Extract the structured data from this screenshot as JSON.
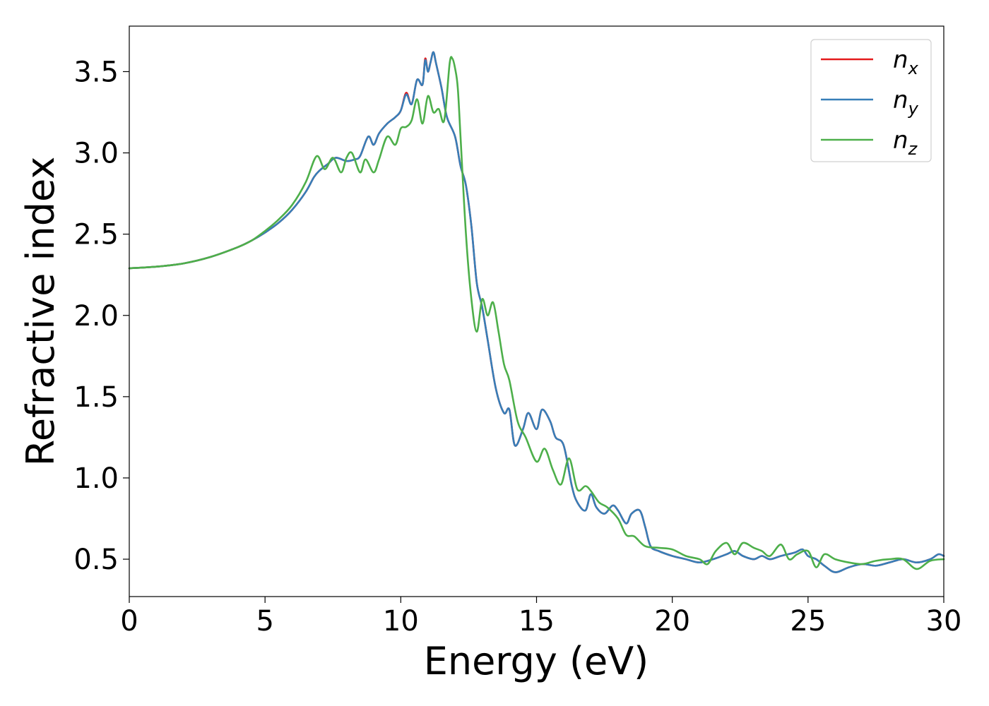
{
  "chart_data": {
    "type": "line",
    "title": "",
    "xlabel": "Energy (eV)",
    "ylabel": "Refractive index",
    "xlim": [
      0,
      30
    ],
    "ylim": [
      0.27,
      3.78
    ],
    "xticks": [
      0,
      5,
      10,
      15,
      20,
      25,
      30
    ],
    "yticks": [
      0.5,
      1.0,
      1.5,
      2.0,
      2.5,
      3.0,
      3.5
    ],
    "xtick_labels": [
      "0",
      "5",
      "10",
      "15",
      "20",
      "25",
      "30"
    ],
    "ytick_labels": [
      "0.5",
      "1.0",
      "1.5",
      "2.0",
      "2.5",
      "3.0",
      "3.5"
    ],
    "grid": false,
    "legend_position": "top-right",
    "series": [
      {
        "name": "n_x",
        "label_base": "n",
        "label_sub": "x",
        "color": "#e41a1c",
        "x": [
          0,
          1,
          2,
          3,
          4,
          4.5,
          5,
          5.5,
          6,
          6.5,
          6.8,
          7,
          7.3,
          7.6,
          8,
          8.3,
          8.5,
          8.8,
          9,
          9.2,
          9.5,
          9.8,
          10,
          10.2,
          10.4,
          10.6,
          10.8,
          10.9,
          11,
          11.1,
          11.2,
          11.3,
          11.5,
          11.7,
          12,
          12.2,
          12.4,
          12.6,
          12.8,
          13,
          13.2,
          13.5,
          13.8,
          14,
          14.2,
          14.5,
          14.7,
          15,
          15.2,
          15.5,
          15.7,
          16,
          16.3,
          16.5,
          16.8,
          17,
          17.2,
          17.5,
          17.8,
          18,
          18.3,
          18.5,
          18.8,
          19,
          19.2,
          19.5,
          20,
          20.5,
          21,
          21.5,
          22,
          22.3,
          22.6,
          23,
          23.3,
          23.6,
          24,
          24.5,
          24.8,
          25,
          25.3,
          25.6,
          26,
          26.5,
          27,
          27.5,
          28,
          28.5,
          29,
          29.5,
          29.8,
          30
        ],
        "y": [
          2.29,
          2.3,
          2.32,
          2.36,
          2.42,
          2.46,
          2.51,
          2.57,
          2.65,
          2.76,
          2.85,
          2.89,
          2.93,
          2.97,
          2.95,
          2.96,
          2.98,
          3.1,
          3.05,
          3.12,
          3.18,
          3.22,
          3.26,
          3.37,
          3.3,
          3.45,
          3.42,
          3.58,
          3.5,
          3.56,
          3.62,
          3.55,
          3.4,
          3.22,
          3.1,
          2.92,
          2.8,
          2.55,
          2.2,
          2.05,
          1.85,
          1.55,
          1.4,
          1.42,
          1.2,
          1.3,
          1.4,
          1.3,
          1.42,
          1.35,
          1.25,
          1.2,
          0.95,
          0.85,
          0.8,
          0.9,
          0.82,
          0.78,
          0.83,
          0.8,
          0.72,
          0.78,
          0.8,
          0.7,
          0.58,
          0.55,
          0.52,
          0.5,
          0.48,
          0.5,
          0.53,
          0.55,
          0.52,
          0.5,
          0.52,
          0.5,
          0.52,
          0.54,
          0.56,
          0.52,
          0.5,
          0.46,
          0.42,
          0.45,
          0.47,
          0.46,
          0.48,
          0.5,
          0.48,
          0.5,
          0.53,
          0.52
        ]
      },
      {
        "name": "n_y",
        "label_base": "n",
        "label_sub": "y",
        "color": "#377eb8",
        "x": [
          0,
          1,
          2,
          3,
          4,
          4.5,
          5,
          5.5,
          6,
          6.5,
          6.8,
          7,
          7.3,
          7.6,
          8,
          8.3,
          8.5,
          8.8,
          9,
          9.2,
          9.5,
          9.8,
          10,
          10.2,
          10.4,
          10.6,
          10.8,
          10.9,
          11,
          11.1,
          11.2,
          11.3,
          11.5,
          11.7,
          12,
          12.2,
          12.4,
          12.6,
          12.8,
          13,
          13.2,
          13.5,
          13.8,
          14,
          14.2,
          14.5,
          14.7,
          15,
          15.2,
          15.5,
          15.7,
          16,
          16.3,
          16.5,
          16.8,
          17,
          17.2,
          17.5,
          17.8,
          18,
          18.3,
          18.5,
          18.8,
          19,
          19.2,
          19.5,
          20,
          20.5,
          21,
          21.5,
          22,
          22.3,
          22.6,
          23,
          23.3,
          23.6,
          24,
          24.5,
          24.8,
          25,
          25.3,
          25.6,
          26,
          26.5,
          27,
          27.5,
          28,
          28.5,
          29,
          29.5,
          29.8,
          30
        ],
        "y": [
          2.29,
          2.3,
          2.32,
          2.36,
          2.42,
          2.46,
          2.51,
          2.57,
          2.65,
          2.76,
          2.85,
          2.89,
          2.93,
          2.97,
          2.95,
          2.96,
          2.98,
          3.1,
          3.05,
          3.12,
          3.18,
          3.22,
          3.26,
          3.36,
          3.3,
          3.45,
          3.42,
          3.57,
          3.5,
          3.56,
          3.62,
          3.55,
          3.4,
          3.22,
          3.1,
          2.92,
          2.8,
          2.55,
          2.2,
          2.05,
          1.85,
          1.55,
          1.4,
          1.42,
          1.2,
          1.3,
          1.4,
          1.3,
          1.42,
          1.35,
          1.25,
          1.2,
          0.95,
          0.85,
          0.8,
          0.9,
          0.82,
          0.78,
          0.83,
          0.8,
          0.72,
          0.78,
          0.8,
          0.7,
          0.58,
          0.55,
          0.52,
          0.5,
          0.48,
          0.5,
          0.53,
          0.55,
          0.52,
          0.5,
          0.52,
          0.5,
          0.52,
          0.54,
          0.56,
          0.52,
          0.5,
          0.46,
          0.42,
          0.45,
          0.47,
          0.46,
          0.48,
          0.5,
          0.48,
          0.5,
          0.53,
          0.52
        ]
      },
      {
        "name": "n_z",
        "label_base": "n",
        "label_sub": "z",
        "color": "#4daf4a",
        "x": [
          0,
          1,
          2,
          3,
          4,
          4.5,
          5,
          5.5,
          6,
          6.5,
          6.9,
          7.2,
          7.5,
          7.8,
          8,
          8.2,
          8.5,
          8.7,
          9,
          9.2,
          9.5,
          9.8,
          10,
          10.2,
          10.4,
          10.6,
          10.8,
          11,
          11.2,
          11.4,
          11.6,
          11.8,
          11.9,
          12,
          12.1,
          12.2,
          12.4,
          12.6,
          12.8,
          13,
          13.2,
          13.4,
          13.6,
          13.8,
          14,
          14.3,
          14.6,
          15,
          15.3,
          15.6,
          15.9,
          16.2,
          16.5,
          16.8,
          17,
          17.3,
          17.6,
          18,
          18.3,
          18.6,
          19,
          19.5,
          20,
          20.5,
          21,
          21.3,
          21.6,
          22,
          22.3,
          22.6,
          23,
          23.3,
          23.6,
          24,
          24.3,
          24.6,
          25,
          25.3,
          25.6,
          26,
          26.5,
          27,
          27.5,
          28,
          28.5,
          29,
          29.5,
          30
        ],
        "y": [
          2.29,
          2.3,
          2.32,
          2.36,
          2.42,
          2.46,
          2.52,
          2.59,
          2.68,
          2.82,
          2.98,
          2.9,
          2.97,
          2.88,
          2.97,
          3.0,
          2.88,
          2.96,
          2.88,
          2.96,
          3.1,
          3.05,
          3.15,
          3.16,
          3.2,
          3.33,
          3.18,
          3.35,
          3.25,
          3.27,
          3.2,
          3.55,
          3.58,
          3.52,
          3.4,
          3.1,
          2.5,
          2.1,
          1.9,
          2.1,
          2.0,
          2.08,
          1.9,
          1.7,
          1.6,
          1.35,
          1.25,
          1.1,
          1.18,
          1.05,
          0.96,
          1.12,
          0.93,
          0.95,
          0.92,
          0.85,
          0.82,
          0.75,
          0.65,
          0.64,
          0.58,
          0.57,
          0.56,
          0.52,
          0.5,
          0.47,
          0.55,
          0.6,
          0.53,
          0.6,
          0.57,
          0.55,
          0.52,
          0.59,
          0.5,
          0.53,
          0.55,
          0.45,
          0.53,
          0.5,
          0.48,
          0.47,
          0.49,
          0.5,
          0.5,
          0.44,
          0.49,
          0.5
        ]
      }
    ]
  }
}
